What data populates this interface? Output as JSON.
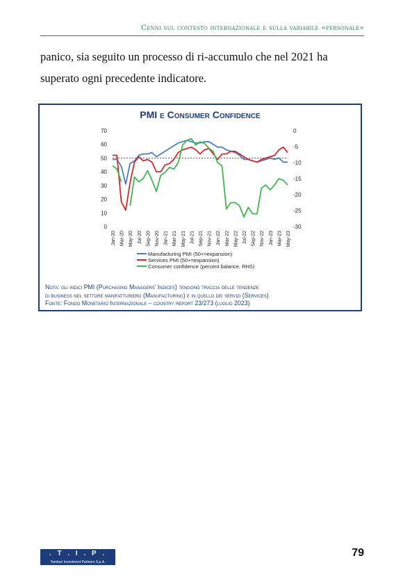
{
  "header": {
    "running_title": "Cenni sul contesto internazionale e sulla variabile «personale»"
  },
  "body": {
    "paragraph": "panico, sia seguito un processo di ri-accumulo che nel 2021 ha superato ogni precedente indicatore."
  },
  "figure": {
    "note_lines": [
      "Nota: gli indici PMI (Purchasing Managers' Indices) tengono traccia delle tendenze",
      "di business nel settore manifatturiero (Manufacturing) e in quello dei servizi (Services)",
      "Fonte: Fondo Monetario Internazionale – country report 23/273 (luglio 2023)"
    ]
  },
  "chart_data": {
    "type": "line",
    "title": "PMI e Consumer Confidence",
    "x": [
      "Jan-20",
      "Feb-20",
      "Mar-20",
      "Apr-20",
      "May-20",
      "Jun-20",
      "Jul-20",
      "Aug-20",
      "Sep-20",
      "Oct-20",
      "Nov-20",
      "Dec-20",
      "Jan-21",
      "Feb-21",
      "Mar-21",
      "Apr-21",
      "May-21",
      "Jun-21",
      "Jul-21",
      "Aug-21",
      "Sep-21",
      "Oct-21",
      "Nov-21",
      "Dec-21",
      "Jan-22",
      "Feb-22",
      "Mar-22",
      "Apr-22",
      "May-22",
      "Jun-22",
      "Jul-22",
      "Aug-22",
      "Sep-22",
      "Oct-22",
      "Nov-22",
      "Dec-22",
      "Jan-23",
      "Feb-23",
      "Mar-23",
      "Apr-23",
      "May-23"
    ],
    "x_tick_labels": [
      "Jan-20",
      "Mar-20",
      "May-20",
      "Jul-20",
      "Sep-20",
      "Nov-20",
      "Jan-21",
      "Mar-21",
      "May-21",
      "Jul-21",
      "Sep-21",
      "Nov-21",
      "Jan-22",
      "Mar-22",
      "May-22",
      "Jul-22",
      "Sep-22",
      "Nov-22",
      "Jan-23",
      "Mar-23",
      "May-23"
    ],
    "y_left": {
      "ylim": [
        0,
        70
      ],
      "ticks": [
        0,
        10,
        20,
        30,
        40,
        50,
        60,
        70
      ]
    },
    "y_right": {
      "ylim": [
        -30,
        0
      ],
      "ticks": [
        0,
        -5,
        -10,
        -15,
        -20,
        -25,
        -30
      ]
    },
    "reference_line_left": 50,
    "series": [
      {
        "name": "Manufacturing PMI (50+=expansion)",
        "axis": "left",
        "color": "#4a7fbf",
        "values": [
          49,
          49,
          44,
          31,
          46,
          48,
          52,
          53,
          53,
          54,
          51,
          53,
          55,
          57,
          59,
          61,
          62,
          63,
          62,
          61,
          61,
          62,
          62,
          60,
          58,
          58,
          56,
          55,
          54,
          52,
          49,
          49,
          48,
          47,
          48,
          49,
          50,
          49,
          50,
          47,
          47
        ]
      },
      {
        "name": "Services PMI (50+=expansion)",
        "axis": "left",
        "color": "#d8262b",
        "values": [
          52,
          52,
          18,
          12,
          32,
          47,
          51,
          48,
          49,
          47,
          40,
          40,
          45,
          46,
          49,
          54,
          56,
          57,
          58,
          56,
          53,
          56,
          57,
          53,
          49,
          53,
          53,
          55,
          55,
          53,
          51,
          49,
          48,
          47,
          49,
          50,
          51,
          52,
          56,
          58,
          54
        ]
      },
      {
        "name": "Consumer confidence (percent balance, RHS)",
        "axis": "right",
        "color": "#3fb54f",
        "values": [
          -11,
          -12,
          -16,
          null,
          -23.5,
          -14.5,
          -16,
          -15,
          -12.5,
          -15.5,
          -19,
          -14,
          -13,
          -11.5,
          -12,
          -10,
          -4.5,
          -3,
          -2.5,
          -4.5,
          -3.5,
          -4,
          -5.5,
          -6.5,
          -10,
          -11,
          -24.5,
          -22.5,
          -22.5,
          -23.5,
          -27,
          -24,
          -26,
          -26,
          -18,
          -17,
          -18.5,
          -17,
          -15,
          -15.5,
          -17
        ]
      }
    ],
    "legend": "bottom-left",
    "grid": false
  },
  "footer": {
    "logo_text": ". T . I . P .",
    "logo_subtitle": "Tamburi Investment Partners S.p.A.",
    "page_number": "79"
  }
}
